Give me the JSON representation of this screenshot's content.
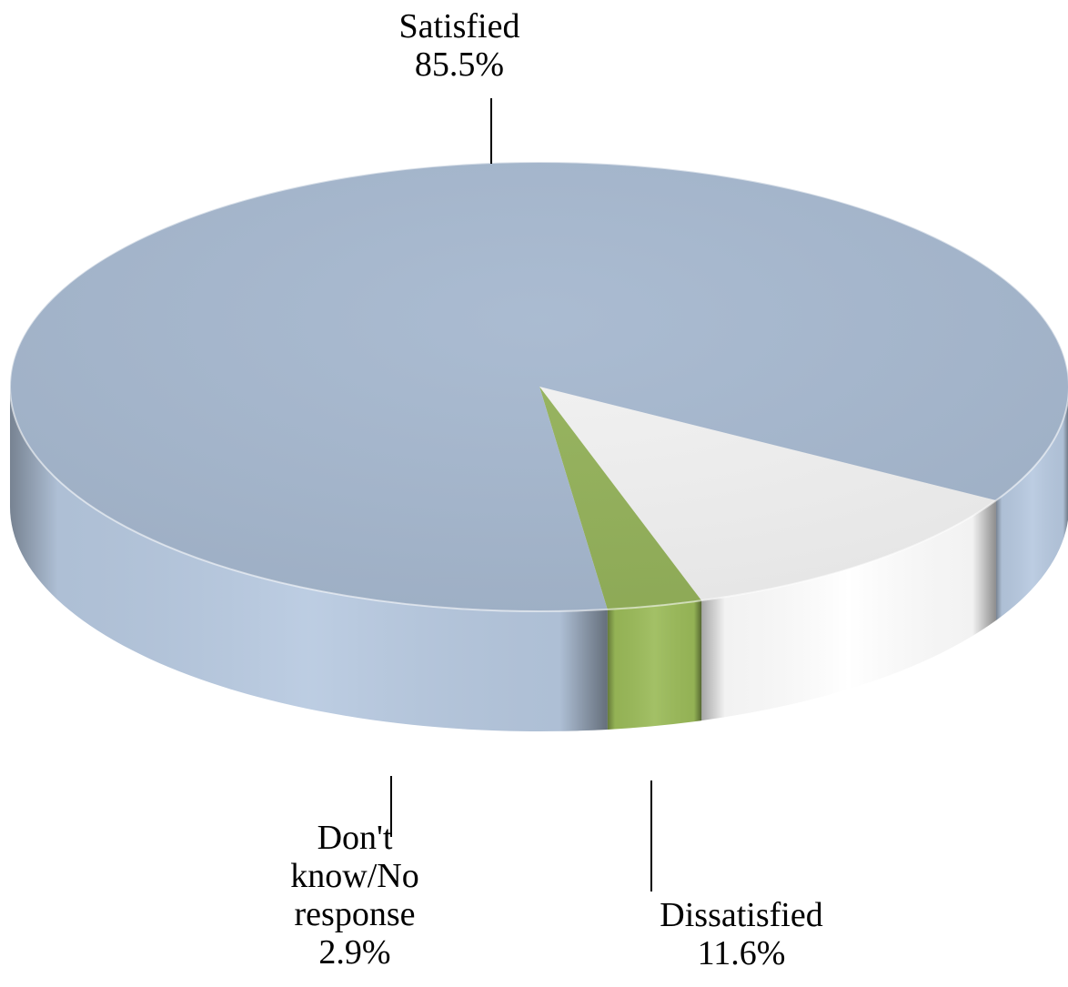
{
  "chart_data": {
    "type": "pie",
    "style": "3d",
    "categories": [
      "Satisfied",
      "Dissatisfied",
      "Don't know/No response"
    ],
    "values": [
      85.5,
      11.6,
      2.9
    ],
    "value_labels": [
      "85.5%",
      "11.6%",
      "2.9%"
    ],
    "label_lines": {
      "satisfied": [
        "Satisfied"
      ],
      "dontknow": [
        "Don't",
        "know/No",
        "response"
      ],
      "dissatisfied": [
        "Dissatisfied"
      ]
    },
    "colors": [
      "#a6b8cf",
      "#f2f2f2",
      "#94b25a"
    ],
    "side_colors": [
      "#b7c9e0",
      "#ffffff",
      "#9bbb59"
    ],
    "title": "",
    "legend": "none"
  }
}
